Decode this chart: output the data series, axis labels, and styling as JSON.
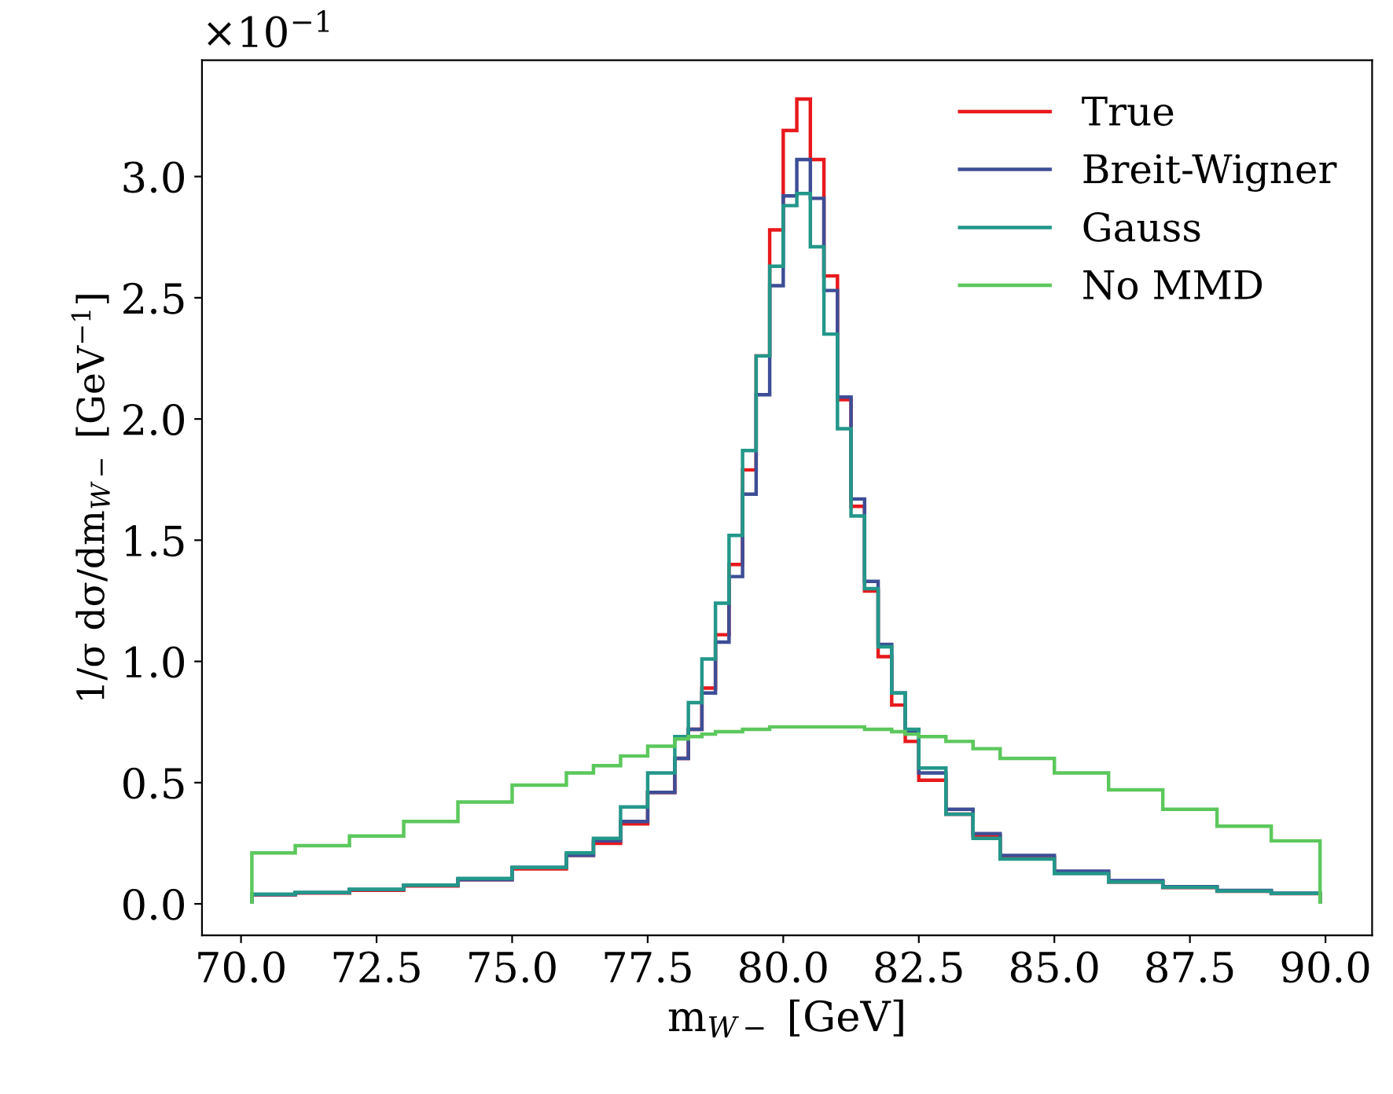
{
  "chart_data": {
    "type": "histogram",
    "xlabel": "m$_{W−}$ [GeV]",
    "ylabel": "1/σ dσ/dm$_{W−}$ [GeV$^{−1}$]",
    "annotations": [
      "×10$^{−1}$"
    ],
    "bins": [
      70.2,
      71.0,
      72.0,
      73.0,
      74.0,
      75.0,
      76.0,
      76.5,
      77.0,
      77.5,
      78.0,
      78.25,
      78.5,
      78.75,
      79.0,
      79.25,
      79.5,
      79.75,
      80.0,
      80.25,
      80.5,
      80.75,
      81.0,
      81.25,
      81.5,
      81.75,
      82.0,
      82.25,
      82.5,
      83.0,
      83.5,
      84.0,
      85.0,
      86.0,
      87.0,
      88.0,
      89.0,
      89.9
    ],
    "series": [
      {
        "name": "True",
        "color": "#e8191c",
        "values": [
          0.037,
          0.045,
          0.056,
          0.074,
          0.1,
          0.144,
          0.2,
          0.25,
          0.33,
          0.46,
          0.6,
          0.72,
          0.89,
          1.11,
          1.4,
          1.79,
          2.26,
          2.78,
          3.19,
          3.32,
          3.07,
          2.59,
          2.08,
          1.64,
          1.29,
          1.02,
          0.82,
          0.67,
          0.51,
          0.37,
          0.28,
          0.19,
          0.13,
          0.09,
          0.067,
          0.052,
          0.042
        ]
      },
      {
        "name": "Breit-Wigner",
        "color": "#3d4e96",
        "values": [
          0.038,
          0.046,
          0.059,
          0.077,
          0.1,
          0.15,
          0.2,
          0.26,
          0.34,
          0.46,
          0.6,
          0.72,
          0.87,
          1.08,
          1.35,
          1.69,
          2.1,
          2.55,
          2.92,
          3.07,
          2.91,
          2.53,
          2.09,
          1.67,
          1.33,
          1.07,
          0.87,
          0.71,
          0.54,
          0.39,
          0.29,
          0.2,
          0.135,
          0.096,
          0.071,
          0.055,
          0.044
        ]
      },
      {
        "name": "Gauss",
        "color": "#23978a",
        "values": [
          0.04,
          0.047,
          0.06,
          0.077,
          0.105,
          0.15,
          0.21,
          0.27,
          0.4,
          0.54,
          0.69,
          0.83,
          1.01,
          1.24,
          1.52,
          1.87,
          2.26,
          2.63,
          2.88,
          2.93,
          2.71,
          2.35,
          1.96,
          1.6,
          1.3,
          1.06,
          0.87,
          0.72,
          0.56,
          0.37,
          0.27,
          0.185,
          0.125,
          0.09,
          0.068,
          0.053,
          0.043
        ]
      },
      {
        "name": "No MMD",
        "color": "#5cc85c",
        "values": [
          0.21,
          0.24,
          0.28,
          0.34,
          0.42,
          0.49,
          0.54,
          0.57,
          0.61,
          0.65,
          0.68,
          0.69,
          0.7,
          0.71,
          0.71,
          0.72,
          0.72,
          0.73,
          0.73,
          0.73,
          0.73,
          0.73,
          0.73,
          0.73,
          0.72,
          0.72,
          0.71,
          0.7,
          0.69,
          0.67,
          0.64,
          0.6,
          0.54,
          0.47,
          0.39,
          0.32,
          0.26
        ]
      }
    ],
    "xlim": [
      69.28,
      90.86
    ],
    "ylim": [
      -0.13,
      3.48
    ],
    "xticks": [
      {
        "value": 70,
        "label": "70.0"
      },
      72.5,
      {
        "value": 75,
        "label": "75.0"
      },
      77.5,
      {
        "value": 80,
        "label": "80.0"
      },
      82.5,
      {
        "value": 85,
        "label": "85.0"
      },
      87.5,
      {
        "value": 90,
        "label": "90.0"
      }
    ],
    "yticks": [
      {
        "value": 0,
        "label": "0.0"
      },
      0.5,
      {
        "value": 1,
        "label": "1.0"
      },
      1.5,
      {
        "value": 2,
        "label": "2.0"
      },
      2.5,
      {
        "value": 3,
        "label": "3.0"
      }
    ],
    "legend": "top right",
    "grid": false
  }
}
